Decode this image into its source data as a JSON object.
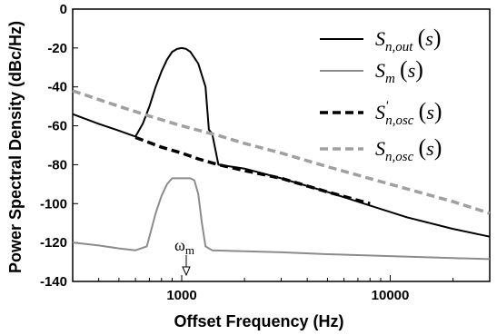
{
  "chart_data": {
    "type": "line",
    "xlabel": "Offset Frequency (Hz)",
    "ylabel": "Power Spectral Density (dBc/Hz)",
    "xscale": "log",
    "xlim": [
      300,
      30000
    ],
    "ylim": [
      -140,
      0
    ],
    "xticks": [
      1000,
      10000
    ],
    "xtick_labels": [
      "1000",
      "10000"
    ],
    "yticks": [
      0,
      -20,
      -40,
      -60,
      -80,
      -100,
      -120,
      -140
    ],
    "ytick_labels": [
      "0",
      "-20",
      "-40",
      "-60",
      "-80",
      "-100",
      "-120",
      "-140"
    ],
    "grid": false,
    "legend_position": "top-right",
    "annotation": {
      "text": "ω",
      "sub": "m",
      "x": 1000,
      "y": -128
    },
    "series": [
      {
        "name": "S_n,out(s)",
        "name_main": "S",
        "name_sub": "n,out",
        "name_prime": "",
        "color": "#000000",
        "style": "solid",
        "x": [
          300,
          400,
          500,
          600,
          650,
          700,
          750,
          800,
          850,
          900,
          950,
          1000,
          1050,
          1100,
          1200,
          1300,
          1350,
          1400,
          1500,
          2000,
          3000,
          5000,
          8000,
          12000,
          20000,
          30000
        ],
        "y": [
          -54,
          -59,
          -62.5,
          -65.5,
          -59,
          -50,
          -40,
          -32,
          -26,
          -22,
          -20.5,
          -20,
          -20.5,
          -22,
          -28,
          -40,
          -62,
          -64,
          -80,
          -82,
          -87,
          -94,
          -101,
          -107,
          -113,
          -117
        ]
      },
      {
        "name": "S_m(s)",
        "name_main": "S",
        "name_sub": "m",
        "name_prime": "",
        "color": "#8c8c8c",
        "style": "solid",
        "x": [
          300,
          400,
          500,
          600,
          680,
          750,
          800,
          850,
          900,
          1000,
          1100,
          1150,
          1200,
          1250,
          1300,
          1400,
          2000,
          3000,
          5000,
          10000,
          20000,
          30000
        ],
        "y": [
          -120,
          -121.5,
          -123,
          -124,
          -122,
          -105,
          -96,
          -90,
          -87,
          -87,
          -87,
          -88,
          -95,
          -110,
          -122,
          -124,
          -124.5,
          -125,
          -126,
          -127,
          -128,
          -128.5
        ]
      },
      {
        "name": "S'_n,osc(s)",
        "name_main": "S",
        "name_sub": "n,osc",
        "name_prime": "'",
        "color": "#000000",
        "style": "dashed",
        "x": [
          600,
          800,
          1000,
          1200,
          1500,
          2000,
          3000,
          5000,
          8000
        ],
        "y": [
          -66,
          -71,
          -74,
          -77,
          -80,
          -83,
          -87,
          -94,
          -100
        ]
      },
      {
        "name": "S_n,osc(s)",
        "name_main": "S",
        "name_sub": "n,osc",
        "name_prime": "",
        "color": "#a0a0a0",
        "style": "dashed",
        "x": [
          300,
          500,
          700,
          1000,
          1500,
          2000,
          3000,
          5000,
          10000,
          20000,
          30000
        ],
        "y": [
          -42,
          -50,
          -55,
          -60,
          -65,
          -69,
          -74,
          -81,
          -90,
          -99,
          -105
        ]
      }
    ]
  }
}
